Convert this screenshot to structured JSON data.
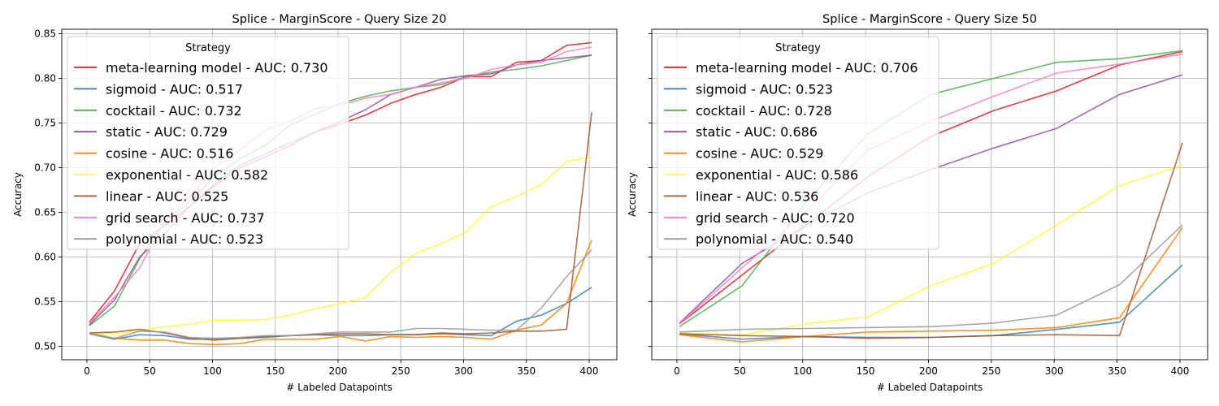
{
  "colors": {
    "meta-learning model": "#e41a1c",
    "sigmoid": "#377eb8",
    "cocktail": "#4daf4a",
    "static": "#984ea3",
    "cosine": "#ff7f00",
    "exponential": "#ffff33",
    "linear": "#a65628",
    "grid search": "#f781bf",
    "polynomial": "#999999"
  },
  "chart_data": [
    {
      "type": "line",
      "title": "Splice - MarginScore - Query Size 20",
      "xlabel": "# Labeled Datapoints",
      "ylabel": "Accuracy",
      "xlim": [
        -20,
        422
      ],
      "ylim": [
        0.485,
        0.855
      ],
      "xticks": [
        0,
        50,
        100,
        150,
        200,
        250,
        300,
        350,
        400
      ],
      "yticks": [
        0.5,
        0.55,
        0.6,
        0.65,
        0.7,
        0.75,
        0.8,
        0.85
      ],
      "grid": true,
      "legend": {
        "title": "Strategy",
        "location": "upper-left"
      },
      "x": [
        2,
        22,
        42,
        62,
        82,
        102,
        122,
        142,
        162,
        182,
        202,
        222,
        242,
        262,
        282,
        302,
        322,
        342,
        362,
        382,
        402
      ],
      "series": [
        {
          "name": "meta-learning model",
          "label": "meta-learning model - AUC: 0.730",
          "values": [
            0.527,
            0.562,
            0.615,
            0.635,
            0.657,
            0.68,
            0.7,
            0.712,
            0.725,
            0.74,
            0.749,
            0.759,
            0.772,
            0.782,
            0.79,
            0.802,
            0.802,
            0.818,
            0.82,
            0.837,
            0.84
          ]
        },
        {
          "name": "sigmoid",
          "label": "sigmoid - AUC: 0.517",
          "values": [
            0.514,
            0.508,
            0.513,
            0.512,
            0.508,
            0.508,
            0.509,
            0.51,
            0.512,
            0.513,
            0.512,
            0.512,
            0.513,
            0.513,
            0.514,
            0.513,
            0.512,
            0.528,
            0.535,
            0.548,
            0.566
          ]
        },
        {
          "name": "cocktail",
          "label": "cocktail - AUC: 0.732",
          "values": [
            0.523,
            0.545,
            0.598,
            0.64,
            0.662,
            0.69,
            0.71,
            0.725,
            0.748,
            0.76,
            0.772,
            0.78,
            0.786,
            0.79,
            0.793,
            0.802,
            0.807,
            0.81,
            0.814,
            0.82,
            0.826
          ]
        },
        {
          "name": "static",
          "label": "static - AUC: 0.729",
          "values": [
            0.524,
            0.552,
            0.6,
            0.626,
            0.657,
            0.682,
            0.703,
            0.715,
            0.728,
            0.74,
            0.752,
            0.765,
            0.782,
            0.79,
            0.799,
            0.803,
            0.805,
            0.815,
            0.82,
            0.823,
            0.826
          ]
        },
        {
          "name": "cosine",
          "label": "cosine - AUC: 0.516",
          "values": [
            0.515,
            0.509,
            0.507,
            0.507,
            0.503,
            0.502,
            0.503,
            0.508,
            0.508,
            0.508,
            0.511,
            0.506,
            0.511,
            0.51,
            0.511,
            0.51,
            0.508,
            0.518,
            0.524,
            0.548,
            0.619
          ]
        },
        {
          "name": "exponential",
          "label": "exponential - AUC: 0.582",
          "values": [
            0.515,
            0.514,
            0.518,
            0.522,
            0.525,
            0.529,
            0.529,
            0.53,
            0.535,
            0.542,
            0.548,
            0.555,
            0.583,
            0.604,
            0.615,
            0.628,
            0.656,
            0.668,
            0.681,
            0.707,
            0.712
          ]
        },
        {
          "name": "linear",
          "label": "linear - AUC: 0.525",
          "values": [
            0.515,
            0.516,
            0.519,
            0.515,
            0.509,
            0.507,
            0.509,
            0.511,
            0.512,
            0.513,
            0.514,
            0.514,
            0.513,
            0.513,
            0.515,
            0.514,
            0.515,
            0.517,
            0.517,
            0.519,
            0.762
          ]
        },
        {
          "name": "grid search",
          "label": "grid search - AUC: 0.737",
          "values": [
            0.526,
            0.555,
            0.588,
            0.64,
            0.668,
            0.7,
            0.72,
            0.742,
            0.752,
            0.766,
            0.77,
            0.778,
            0.782,
            0.79,
            0.795,
            0.8,
            0.81,
            0.815,
            0.818,
            0.83,
            0.835
          ]
        },
        {
          "name": "polynomial",
          "label": "polynomial - AUC: 0.523",
          "values": [
            0.514,
            0.509,
            0.517,
            0.516,
            0.51,
            0.509,
            0.51,
            0.512,
            0.512,
            0.514,
            0.516,
            0.516,
            0.516,
            0.52,
            0.52,
            0.519,
            0.518,
            0.518,
            0.543,
            0.578,
            0.608
          ]
        }
      ]
    },
    {
      "type": "line",
      "title": "Splice - MarginScore - Query Size 50",
      "xlabel": "# Labeled Datapoints",
      "ylabel": "Accuracy",
      "xlim": [
        -20,
        422
      ],
      "ylim": [
        0.485,
        0.855
      ],
      "xticks": [
        0,
        50,
        100,
        150,
        200,
        250,
        300,
        350,
        400
      ],
      "yticks": [
        0.5,
        0.55,
        0.6,
        0.65,
        0.7,
        0.75,
        0.8,
        0.85
      ],
      "grid": true,
      "legend": {
        "title": "Strategy",
        "location": "upper-left"
      },
      "x": [
        2,
        52,
        102,
        152,
        202,
        252,
        302,
        352,
        402
      ],
      "series": [
        {
          "name": "meta-learning model",
          "label": "meta-learning model - AUC: 0.706",
          "values": [
            0.525,
            0.58,
            0.635,
            0.69,
            0.735,
            0.764,
            0.786,
            0.815,
            0.83
          ]
        },
        {
          "name": "sigmoid",
          "label": "sigmoid - AUC: 0.523",
          "values": [
            0.514,
            0.508,
            0.511,
            0.51,
            0.51,
            0.512,
            0.519,
            0.527,
            0.591
          ]
        },
        {
          "name": "cocktail",
          "label": "cocktail - AUC: 0.728",
          "values": [
            0.522,
            0.568,
            0.66,
            0.738,
            0.782,
            0.8,
            0.818,
            0.822,
            0.831
          ]
        },
        {
          "name": "static",
          "label": "static - AUC: 0.686",
          "values": [
            0.526,
            0.593,
            0.635,
            0.672,
            0.698,
            0.722,
            0.744,
            0.782,
            0.804
          ]
        },
        {
          "name": "cosine",
          "label": "cosine - AUC: 0.529",
          "values": [
            0.513,
            0.505,
            0.511,
            0.516,
            0.517,
            0.518,
            0.521,
            0.532,
            0.633
          ]
        },
        {
          "name": "exponential",
          "label": "exponential - AUC: 0.586",
          "values": [
            0.515,
            0.513,
            0.525,
            0.533,
            0.568,
            0.593,
            0.636,
            0.68,
            0.703
          ]
        },
        {
          "name": "linear",
          "label": "linear - AUC: 0.536",
          "values": [
            0.514,
            0.512,
            0.511,
            0.509,
            0.51,
            0.512,
            0.513,
            0.512,
            0.728
          ]
        },
        {
          "name": "grid search",
          "label": "grid search - AUC: 0.720",
          "values": [
            0.525,
            0.588,
            0.65,
            0.72,
            0.752,
            0.78,
            0.806,
            0.816,
            0.827
          ]
        },
        {
          "name": "polynomial",
          "label": "polynomial - AUC: 0.540",
          "values": [
            0.516,
            0.519,
            0.52,
            0.521,
            0.522,
            0.526,
            0.535,
            0.569,
            0.636
          ]
        }
      ]
    }
  ]
}
